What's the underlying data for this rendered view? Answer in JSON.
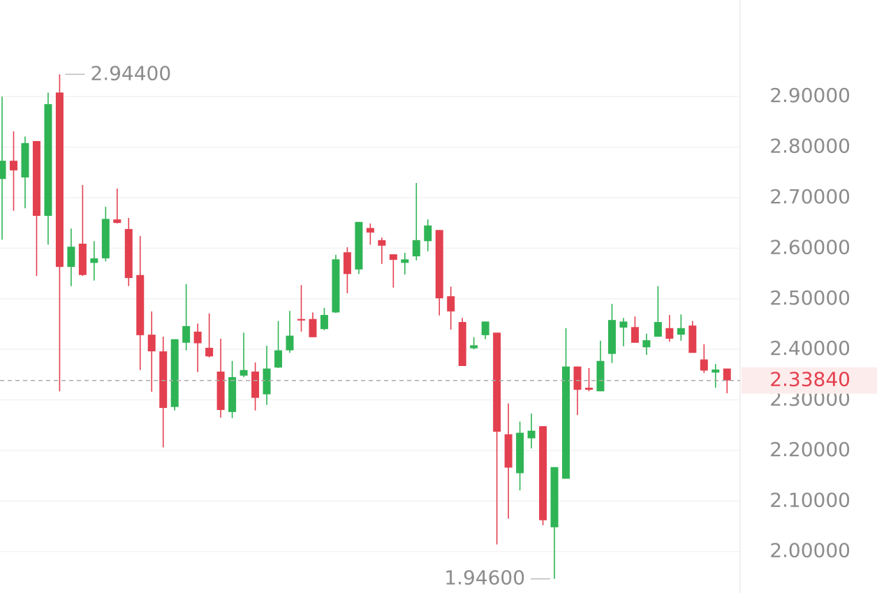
{
  "chart_data": {
    "type": "candlestick",
    "open": [
      2.737,
      2.773,
      2.74,
      2.812,
      2.664,
      2.908,
      2.563,
      2.609,
      2.571,
      2.58,
      2.657,
      2.638,
      2.547,
      2.429,
      2.396,
      2.286,
      2.413,
      2.435,
      2.403,
      2.356,
      2.276,
      2.348,
      2.356,
      2.311,
      2.364,
      2.398,
      2.46,
      2.46,
      2.44,
      2.473,
      2.592,
      2.558,
      2.64,
      2.616,
      2.588,
      2.571,
      2.584,
      2.614,
      2.636,
      2.505,
      2.454,
      2.402,
      2.428,
      2.433,
      2.232,
      2.155,
      2.224,
      2.248,
      2.048,
      2.144,
      2.366,
      2.324,
      2.317,
      2.391,
      2.443,
      2.444,
      2.404,
      2.425,
      2.442,
      2.429,
      2.447,
      2.38,
      2.354,
      2.362
    ],
    "high": [
      2.9,
      2.831,
      2.821,
      2.812,
      2.908,
      2.944,
      2.639,
      2.725,
      2.614,
      2.682,
      2.718,
      2.66,
      2.624,
      2.475,
      2.425,
      2.42,
      2.529,
      2.451,
      2.471,
      2.421,
      2.377,
      2.433,
      2.374,
      2.407,
      2.456,
      2.476,
      2.527,
      2.473,
      2.482,
      2.587,
      2.602,
      2.652,
      2.649,
      2.621,
      2.588,
      2.591,
      2.729,
      2.657,
      2.636,
      2.524,
      2.462,
      2.424,
      2.455,
      2.433,
      2.293,
      2.257,
      2.273,
      2.248,
      2.167,
      2.442,
      2.366,
      2.363,
      2.417,
      2.49,
      2.462,
      2.465,
      2.431,
      2.525,
      2.468,
      2.469,
      2.456,
      2.41,
      2.371,
      2.362
    ],
    "low": [
      2.617,
      2.674,
      2.679,
      2.545,
      2.607,
      2.317,
      2.525,
      2.545,
      2.536,
      2.574,
      2.649,
      2.525,
      2.359,
      2.316,
      2.206,
      2.279,
      2.398,
      2.355,
      2.384,
      2.265,
      2.264,
      2.345,
      2.279,
      2.29,
      2.363,
      2.393,
      2.435,
      2.424,
      2.438,
      2.472,
      2.511,
      2.549,
      2.607,
      2.569,
      2.522,
      2.548,
      2.576,
      2.594,
      2.467,
      2.439,
      2.367,
      2.4,
      2.42,
      2.014,
      2.065,
      2.121,
      2.204,
      2.052,
      1.946,
      2.144,
      2.27,
      2.317,
      2.317,
      2.373,
      2.406,
      2.413,
      2.389,
      2.425,
      2.415,
      2.417,
      2.393,
      2.353,
      2.324,
      2.313
    ],
    "close": [
      2.773,
      2.754,
      2.808,
      2.664,
      2.885,
      2.563,
      2.603,
      2.547,
      2.58,
      2.658,
      2.65,
      2.541,
      2.428,
      2.396,
      2.284,
      2.42,
      2.446,
      2.412,
      2.386,
      2.28,
      2.345,
      2.359,
      2.304,
      2.362,
      2.398,
      2.427,
      2.457,
      2.424,
      2.468,
      2.578,
      2.549,
      2.652,
      2.631,
      2.605,
      2.577,
      2.578,
      2.616,
      2.645,
      2.501,
      2.475,
      2.367,
      2.408,
      2.455,
      2.237,
      2.166,
      2.235,
      2.239,
      2.062,
      2.167,
      2.366,
      2.32,
      2.32,
      2.377,
      2.458,
      2.455,
      2.413,
      2.418,
      2.454,
      2.421,
      2.442,
      2.393,
      2.358,
      2.36,
      2.3384
    ],
    "up_color": "#2fb455",
    "down_color": "#e3404f",
    "ylim": [
      1.918,
      3.091
    ],
    "yticks": [
      {
        "value": 2.0,
        "label": "2.00000"
      },
      {
        "value": 2.1,
        "label": "2.10000"
      },
      {
        "value": 2.2,
        "label": "2.20000"
      },
      {
        "value": 2.3,
        "label": "2.30000"
      },
      {
        "value": 2.4,
        "label": "2.40000"
      },
      {
        "value": 2.5,
        "label": "2.50000"
      },
      {
        "value": 2.6,
        "label": "2.60000"
      },
      {
        "value": 2.7,
        "label": "2.70000"
      },
      {
        "value": 2.8,
        "label": "2.80000"
      },
      {
        "value": 2.9,
        "label": "2.90000"
      }
    ],
    "grid": true,
    "last_price": {
      "value": 2.3384,
      "label": "2.33840"
    },
    "max_label": {
      "value": 2.944,
      "label": "2.94400"
    },
    "min_label": {
      "value": 1.946,
      "label": "1.94600"
    }
  }
}
